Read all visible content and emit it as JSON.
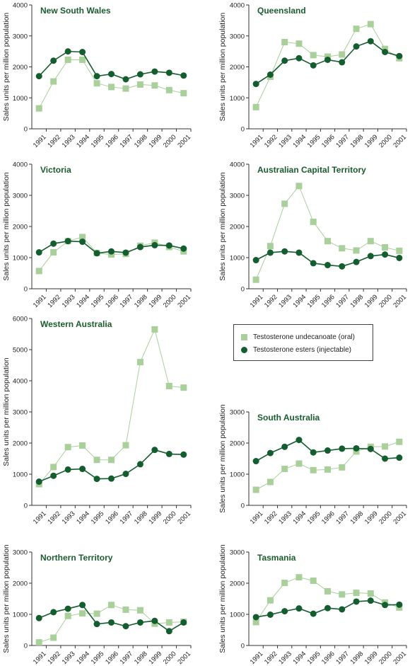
{
  "legend": {
    "oral_label": "Testosterone undecanoate (oral)",
    "injectable_label": "Testosterone esters (injectable)"
  },
  "colors": {
    "oral": "#a9cf9b",
    "injectable": "#135d2e",
    "title": "#1a5c2e"
  },
  "chart_data": [
    {
      "type": "line",
      "title": "New South Wales",
      "ylabel": "Sales units per million population",
      "x": [
        "1991",
        "1992",
        "1993",
        "1994",
        "1995",
        "1996",
        "1997",
        "1998",
        "1999",
        "2000",
        "2001"
      ],
      "ylim": [
        0,
        4000
      ],
      "yticks": [
        0,
        1000,
        2000,
        3000,
        4000
      ],
      "series": [
        {
          "name": "Testosterone undecanoate (oral)",
          "values": [
            660,
            1530,
            2230,
            2230,
            1470,
            1350,
            1300,
            1430,
            1400,
            1250,
            1150
          ]
        },
        {
          "name": "Testosterone esters (injectable)",
          "values": [
            1700,
            2200,
            2500,
            2480,
            1700,
            1770,
            1600,
            1760,
            1850,
            1810,
            1720
          ]
        }
      ]
    },
    {
      "type": "line",
      "title": "Queensland",
      "ylabel": "Sales units per million population",
      "x": [
        "1991",
        "1992",
        "1993",
        "1994",
        "1995",
        "1996",
        "1997",
        "1998",
        "1999",
        "2000",
        "2001"
      ],
      "ylim": [
        0,
        4000
      ],
      "yticks": [
        0,
        1000,
        2000,
        3000,
        4000
      ],
      "series": [
        {
          "name": "Testosterone undecanoate (oral)",
          "values": [
            700,
            1680,
            2800,
            2750,
            2380,
            2330,
            2400,
            3230,
            3380,
            2580,
            2280
          ]
        },
        {
          "name": "Testosterone esters (injectable)",
          "values": [
            1450,
            1750,
            2200,
            2280,
            2050,
            2230,
            2150,
            2660,
            2830,
            2480,
            2350
          ]
        }
      ]
    },
    {
      "type": "line",
      "title": "Victoria",
      "ylabel": "Sales units per million population",
      "x": [
        "1991",
        "1992",
        "1993",
        "1994",
        "1995",
        "1996",
        "1997",
        "1998",
        "1999",
        "2000",
        "2001"
      ],
      "ylim": [
        0,
        4000
      ],
      "yticks": [
        0,
        1000,
        2000,
        3000,
        4000
      ],
      "series": [
        {
          "name": "Testosterone undecanoate (oral)",
          "values": [
            570,
            1170,
            1530,
            1660,
            1150,
            1100,
            1120,
            1380,
            1480,
            1340,
            1200
          ]
        },
        {
          "name": "Testosterone esters (injectable)",
          "values": [
            1170,
            1450,
            1530,
            1510,
            1140,
            1200,
            1160,
            1340,
            1400,
            1390,
            1290
          ]
        }
      ]
    },
    {
      "type": "line",
      "title": "Australian Capital Territory",
      "ylabel": "Sales units per million population",
      "x": [
        "1991",
        "1992",
        "1993",
        "1994",
        "1995",
        "1996",
        "1997",
        "1998",
        "1999",
        "2000",
        "2001"
      ],
      "ylim": [
        0,
        4000
      ],
      "yticks": [
        0,
        1000,
        2000,
        3000,
        4000
      ],
      "series": [
        {
          "name": "Testosterone undecanoate (oral)",
          "values": [
            290,
            1370,
            2730,
            3300,
            2150,
            1530,
            1300,
            1230,
            1530,
            1330,
            1220
          ]
        },
        {
          "name": "Testosterone esters (injectable)",
          "values": [
            920,
            1160,
            1200,
            1160,
            820,
            760,
            720,
            860,
            1050,
            1100,
            990
          ]
        }
      ]
    },
    {
      "type": "line",
      "title": "Western Australia",
      "ylabel": "Sales units per million population",
      "x": [
        "1991",
        "1992",
        "1993",
        "1994",
        "1995",
        "1996",
        "1997",
        "1998",
        "1999",
        "2000",
        "2001"
      ],
      "ylim": [
        0,
        6000
      ],
      "yticks": [
        0,
        1000,
        2000,
        3000,
        4000,
        5000,
        6000
      ],
      "series": [
        {
          "name": "Testosterone undecanoate (oral)",
          "values": [
            680,
            1230,
            1870,
            1920,
            1460,
            1460,
            1930,
            4600,
            5650,
            3830,
            3780
          ]
        },
        {
          "name": "Testosterone esters (injectable)",
          "values": [
            760,
            950,
            1150,
            1170,
            850,
            860,
            1010,
            1320,
            1780,
            1650,
            1630
          ]
        }
      ]
    },
    {
      "type": "line",
      "title": "South Australia",
      "ylabel": "Sales units per million population",
      "x": [
        "1991",
        "1992",
        "1993",
        "1994",
        "1995",
        "1996",
        "1997",
        "1998",
        "1999",
        "2000",
        "2001"
      ],
      "ylim": [
        0,
        3000
      ],
      "yticks": [
        0,
        1000,
        2000,
        3000
      ],
      "series": [
        {
          "name": "Testosterone undecanoate (oral)",
          "values": [
            500,
            750,
            1170,
            1340,
            1130,
            1150,
            1220,
            1730,
            1880,
            1890,
            2040
          ]
        },
        {
          "name": "Testosterone esters (injectable)",
          "values": [
            1420,
            1680,
            1880,
            2100,
            1700,
            1760,
            1820,
            1830,
            1810,
            1500,
            1530
          ]
        }
      ]
    },
    {
      "type": "line",
      "title": "Northern Territory",
      "ylabel": "Sales units per million population",
      "x": [
        "1991",
        "1992",
        "1993",
        "1994",
        "1995",
        "1996",
        "1997",
        "1998",
        "1999",
        "2000",
        "2001"
      ],
      "ylim": [
        0,
        3000
      ],
      "yticks": [
        0,
        1000,
        2000,
        3000
      ],
      "series": [
        {
          "name": "Testosterone undecanoate (oral)",
          "values": [
            100,
            250,
            950,
            1030,
            1020,
            1300,
            1150,
            1130,
            700,
            740,
            760
          ]
        },
        {
          "name": "Testosterone esters (injectable)",
          "values": [
            880,
            1070,
            1180,
            1300,
            690,
            740,
            620,
            740,
            790,
            460,
            740
          ]
        }
      ]
    },
    {
      "type": "line",
      "title": "Tasmania",
      "ylabel": "Sales units per million population",
      "x": [
        "1991",
        "1992",
        "1993",
        "1994",
        "1995",
        "1996",
        "1997",
        "1998",
        "1999",
        "2000",
        "2001"
      ],
      "ylim": [
        0,
        3000
      ],
      "yticks": [
        0,
        1000,
        2000,
        3000
      ],
      "series": [
        {
          "name": "Testosterone undecanoate (oral)",
          "values": [
            750,
            1450,
            2010,
            2190,
            2080,
            1740,
            1640,
            1690,
            1670,
            1380,
            1220
          ]
        },
        {
          "name": "Testosterone esters (injectable)",
          "values": [
            910,
            990,
            1100,
            1190,
            1020,
            1200,
            1160,
            1410,
            1440,
            1300,
            1310
          ]
        }
      ]
    }
  ]
}
